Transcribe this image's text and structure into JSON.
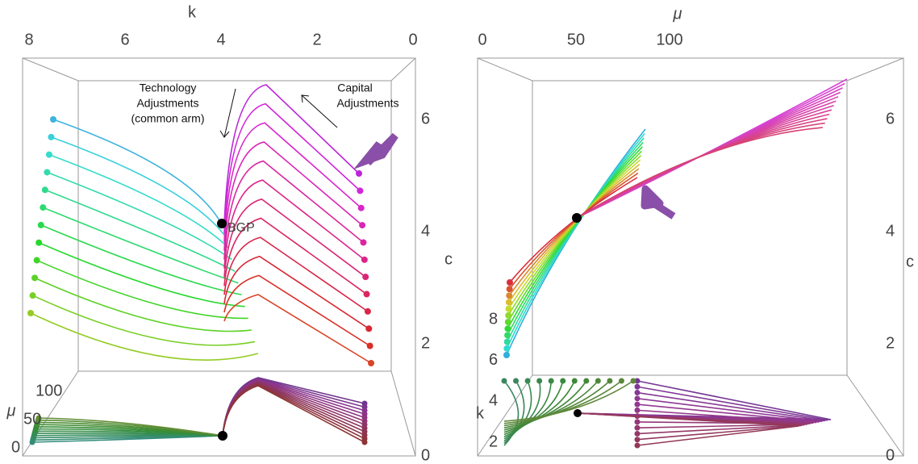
{
  "panels": [
    {
      "axes": {
        "k": {
          "label": "k",
          "ticks": [
            0,
            2,
            4,
            6,
            8
          ]
        },
        "c": {
          "label": "c",
          "ticks": [
            0,
            2,
            4,
            6
          ]
        },
        "mu": {
          "label": "μ",
          "ticks": [
            0,
            50,
            100
          ]
        }
      },
      "annotations": {
        "technology": [
          "Technology",
          "Adjustments",
          "(common arm)"
        ],
        "capital": [
          "Capital",
          "Adjustments"
        ],
        "point": "BGP"
      }
    },
    {
      "axes": {
        "mu": {
          "label": "μ",
          "ticks": [
            0,
            50,
            100
          ]
        },
        "c": {
          "label": "c",
          "ticks": [
            0,
            2,
            4,
            6
          ]
        },
        "k": {
          "label": "k",
          "ticks": [
            2,
            4,
            6,
            8
          ]
        }
      }
    }
  ]
}
